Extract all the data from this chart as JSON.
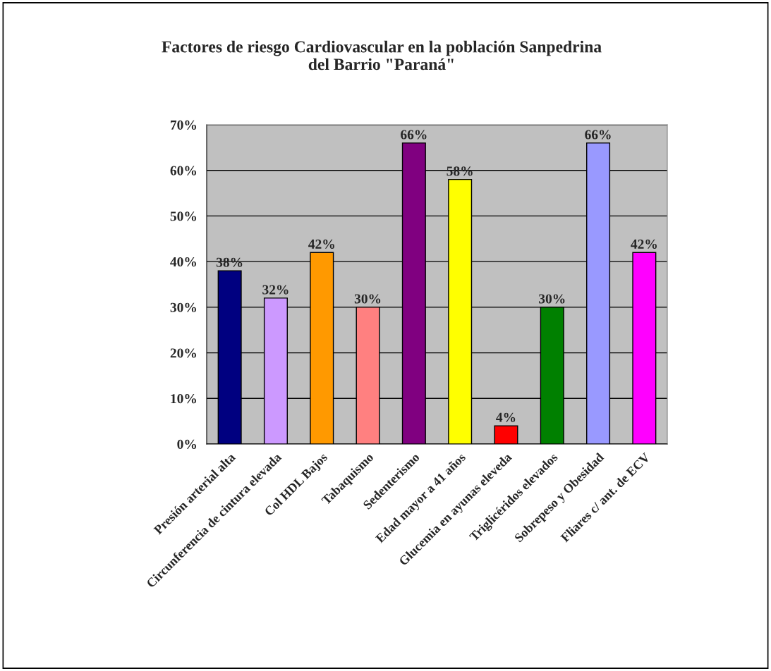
{
  "chart_data": {
    "type": "bar",
    "title": "Factores de riesgo Cardiovascular en la población Sanpedrina\ndel Barrio \"Paraná\"",
    "categories": [
      "Presión arterial alta",
      "Circunferencia de cintura elevada",
      "Col HDL Bajos",
      "Tabaquismo",
      "Sedenterismo",
      "Edad mayor a 41 años",
      "Glucemia en ayunas eleveda",
      "Triglicéridos elevados",
      "Sobrepeso y Obesidad",
      "Fliares c/ ant. de ECV"
    ],
    "values": [
      38,
      32,
      42,
      30,
      66,
      58,
      4,
      30,
      66,
      42
    ],
    "colors": [
      "#000080",
      "#cc99ff",
      "#ff9900",
      "#ff8080",
      "#800080",
      "#ffff00",
      "#ff0000",
      "#008000",
      "#9999ff",
      "#ff00ff"
    ],
    "value_labels": [
      "38%",
      "32%",
      "42%",
      "30%",
      "66%",
      "58%",
      "4%",
      "30%",
      "66%",
      "42%"
    ],
    "ylim": [
      0,
      70
    ],
    "yticks": [
      {
        "value": 0,
        "label": "0%"
      },
      {
        "value": 10,
        "label": "10%"
      },
      {
        "value": 20,
        "label": "20%"
      },
      {
        "value": 30,
        "label": "30%"
      },
      {
        "value": 40,
        "label": "40%"
      },
      {
        "value": 50,
        "label": "50%"
      },
      {
        "value": 60,
        "label": "60%"
      },
      {
        "value": 70,
        "label": "70%"
      }
    ],
    "grid": "y"
  }
}
